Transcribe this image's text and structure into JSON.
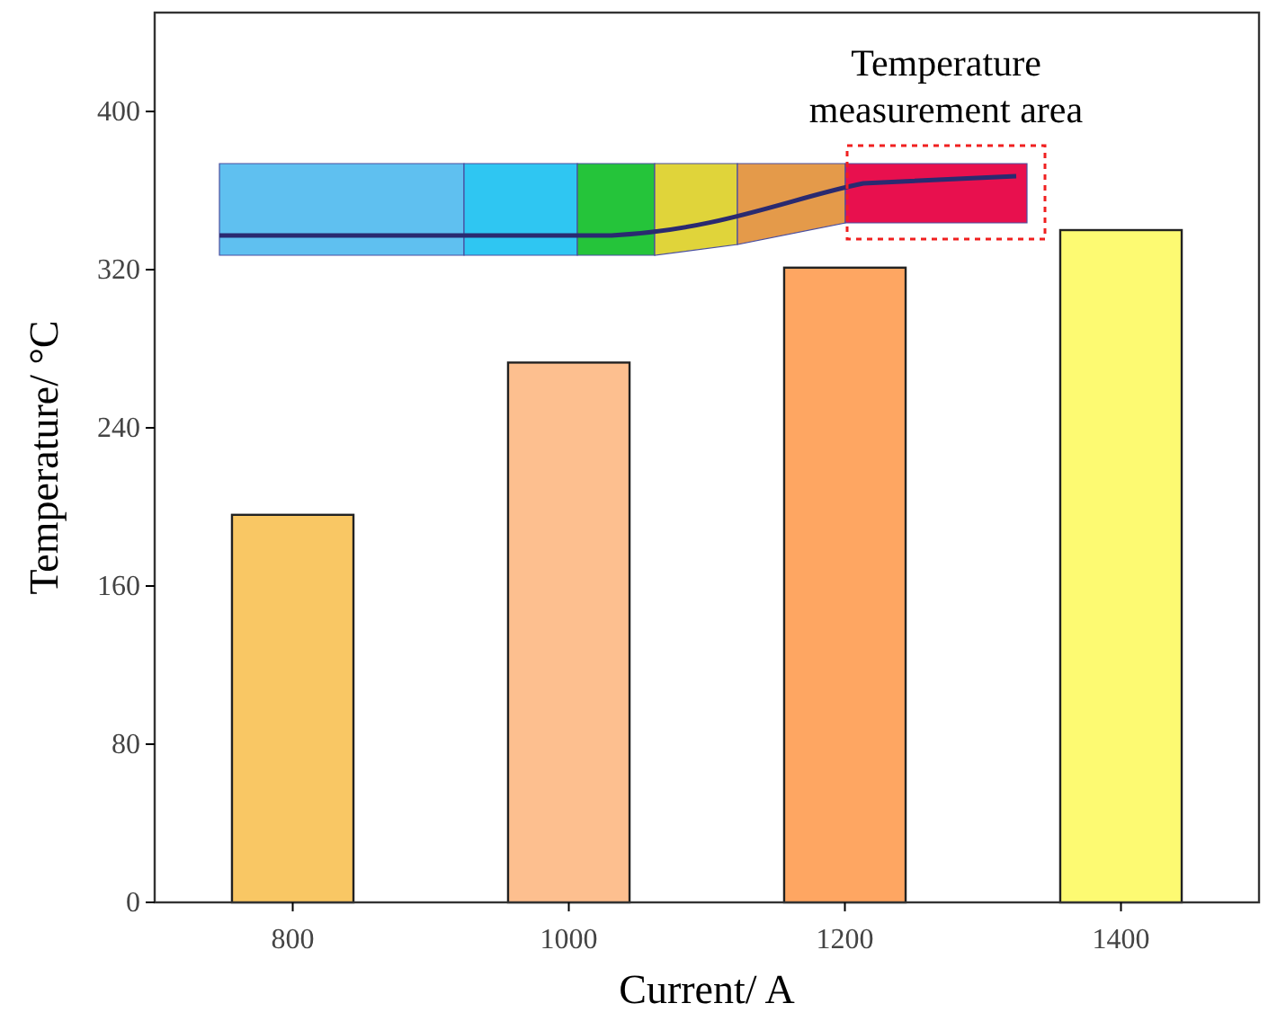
{
  "chart_data": {
    "type": "bar",
    "xlabel": "Current/ A",
    "ylabel": "Temperature/ °C",
    "categories": [
      "800",
      "1000",
      "1200",
      "1400"
    ],
    "values": [
      196,
      273,
      321,
      340
    ],
    "colors": [
      "#f9c764",
      "#fdbf8f",
      "#fea662",
      "#fdfa72"
    ],
    "ylim": [
      0,
      450
    ],
    "yticks": [
      0,
      80,
      160,
      240,
      320,
      400
    ],
    "annotations": [
      "Temperature\nmeasurement area"
    ]
  }
}
